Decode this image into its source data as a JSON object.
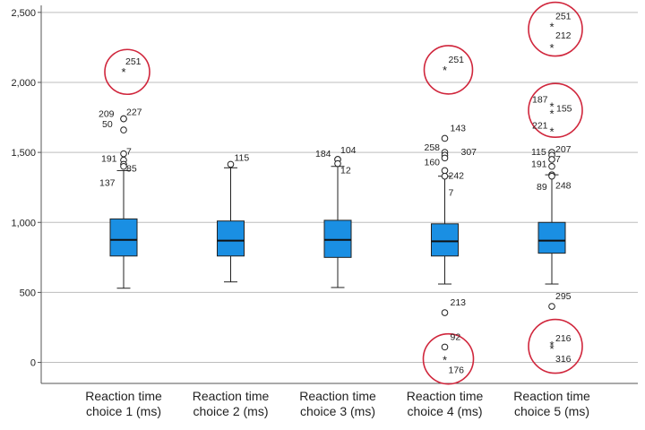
{
  "chart_data": {
    "type": "boxplot",
    "ylim": [
      -150,
      2550
    ],
    "yticks": [
      0,
      500,
      1000,
      1500,
      2000,
      2500
    ],
    "ytick_labels": [
      "0",
      "500",
      "1,000",
      "1,500",
      "2,000",
      "2,500"
    ],
    "grid": true,
    "colors": {
      "box": "#1a8fe3",
      "highlight": "#d0263c",
      "grid": "#bdbdbd",
      "axis": "#555555"
    },
    "groups": [
      {
        "label_line1": "Reaction time",
        "label_line2": "choice 1 (ms)",
        "whisker_low": 530,
        "q1": 760,
        "median": 875,
        "q3": 1025,
        "whisker_high": 1370,
        "outliers": [
          {
            "id": "251",
            "value": 2075,
            "marker": "star",
            "highlight": true
          },
          {
            "id": "227",
            "value": 1740,
            "marker": "circle"
          },
          {
            "id": "209",
            "value": 1740,
            "marker": "circle"
          },
          {
            "id": "50",
            "value": 1660,
            "marker": "circle"
          },
          {
            "id": "7",
            "value": 1490,
            "marker": "circle"
          },
          {
            "id": "191",
            "value": 1445,
            "marker": "circle"
          },
          {
            "id": "85",
            "value": 1415,
            "marker": "circle"
          },
          {
            "id": "137",
            "value": 1400,
            "marker": "circle"
          }
        ]
      },
      {
        "label_line1": "Reaction time",
        "label_line2": "choice 2 (ms)",
        "whisker_low": 575,
        "q1": 760,
        "median": 870,
        "q3": 1010,
        "whisker_high": 1390,
        "outliers": [
          {
            "id": "115",
            "value": 1415,
            "marker": "circle"
          }
        ]
      },
      {
        "label_line1": "Reaction time",
        "label_line2": "choice 3 (ms)",
        "whisker_low": 535,
        "q1": 750,
        "median": 875,
        "q3": 1015,
        "whisker_high": 1400,
        "outliers": [
          {
            "id": "104",
            "value": 1450,
            "marker": "circle"
          },
          {
            "id": "184",
            "value": 1450,
            "marker": "circle"
          },
          {
            "id": "12",
            "value": 1420,
            "marker": "circle"
          }
        ]
      },
      {
        "label_line1": "Reaction time",
        "label_line2": "choice 4 (ms)",
        "whisker_low": 560,
        "q1": 760,
        "median": 865,
        "q3": 990,
        "whisker_high": 1330,
        "outliers": [
          {
            "id": "251",
            "value": 2090,
            "marker": "star",
            "highlight": true
          },
          {
            "id": "143",
            "value": 1600,
            "marker": "circle"
          },
          {
            "id": "258",
            "value": 1500,
            "marker": "circle"
          },
          {
            "id": "307",
            "value": 1480,
            "marker": "circle"
          },
          {
            "id": "160",
            "value": 1460,
            "marker": "circle"
          },
          {
            "id": "242",
            "value": 1370,
            "marker": "circle"
          },
          {
            "id": "7",
            "value": 1330,
            "marker": "circle"
          },
          {
            "id": "213",
            "value": 355,
            "marker": "circle"
          },
          {
            "id": "92",
            "value": 110,
            "marker": "circle"
          },
          {
            "id": "176",
            "value": 20,
            "marker": "star",
            "highlight": true
          }
        ]
      },
      {
        "label_line1": "Reaction time",
        "label_line2": "choice 5 (ms)",
        "whisker_low": 560,
        "q1": 780,
        "median": 870,
        "q3": 1000,
        "whisker_high": 1340,
        "outliers": [
          {
            "id": "251",
            "value": 2400,
            "marker": "star",
            "highlight": true
          },
          {
            "id": "212",
            "value": 2250,
            "marker": "star",
            "highlight": true
          },
          {
            "id": "187",
            "value": 1830,
            "marker": "star",
            "highlight": true
          },
          {
            "id": "155",
            "value": 1780,
            "marker": "star",
            "highlight": true
          },
          {
            "id": "221",
            "value": 1650,
            "marker": "star",
            "highlight": true
          },
          {
            "id": "207",
            "value": 1500,
            "marker": "circle"
          },
          {
            "id": "115",
            "value": 1480,
            "marker": "circle"
          },
          {
            "id": "7",
            "value": 1450,
            "marker": "circle"
          },
          {
            "id": "191",
            "value": 1400,
            "marker": "circle"
          },
          {
            "id": "89",
            "value": 1340,
            "marker": "circle"
          },
          {
            "id": "248",
            "value": 1330,
            "marker": "circle"
          },
          {
            "id": "295",
            "value": 400,
            "marker": "circle"
          },
          {
            "id": "216",
            "value": 125,
            "marker": "star",
            "highlight": true
          },
          {
            "id": "316",
            "value": 100,
            "marker": "star",
            "highlight": true
          }
        ]
      }
    ]
  }
}
